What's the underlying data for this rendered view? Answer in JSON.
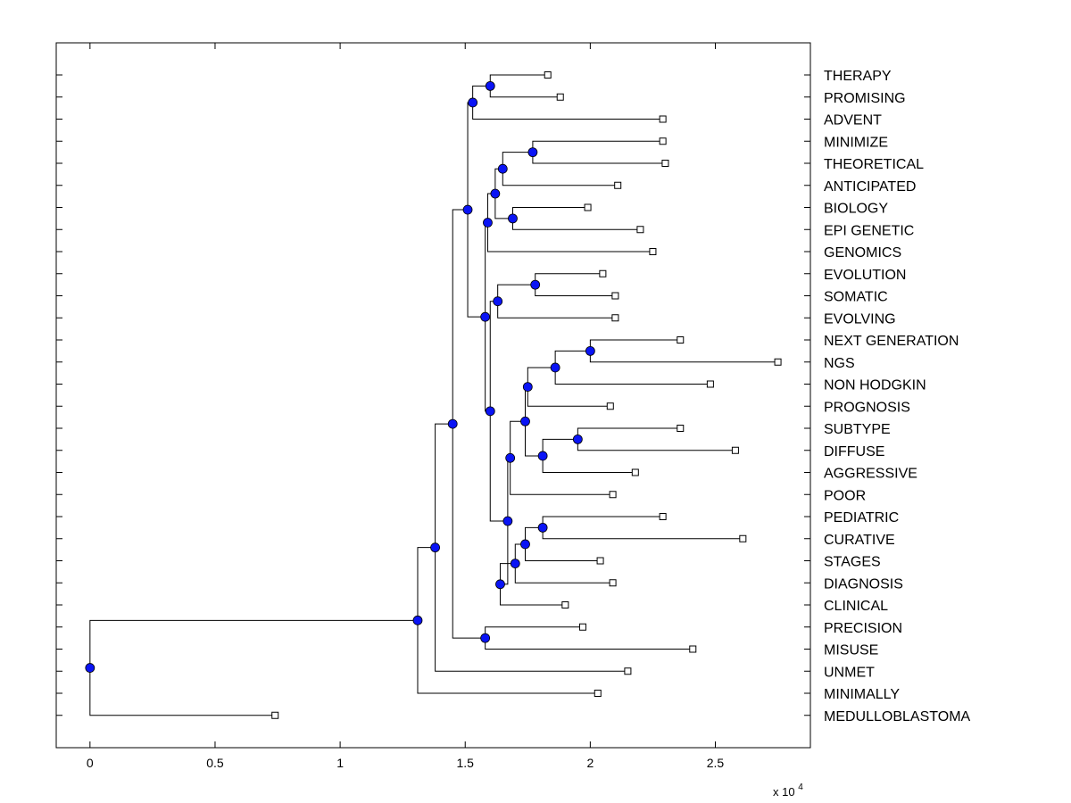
{
  "chart_data": {
    "type": "dendrogram",
    "orientation": "horizontal",
    "title": "",
    "xlabel": "",
    "ylabel": "",
    "x_multiplier_label": "x 10",
    "x_multiplier_exponent": "4",
    "xlim": [
      -0.135,
      2.88
    ],
    "x_ticks": [
      0,
      0.5,
      1,
      1.5,
      2,
      2.5
    ],
    "x_tick_labels": [
      "0",
      "0.5",
      "1",
      "1.5",
      "2",
      "2.5"
    ],
    "grid": false,
    "colors": {
      "node": "#0a14f5",
      "node_edge": "#000000",
      "line": "#000000",
      "leaf_marker": "#ffffff"
    },
    "leaves": [
      {
        "name": "THERAPY",
        "x": 1.83
      },
      {
        "name": "PROMISING",
        "x": 1.88
      },
      {
        "name": "ADVENT",
        "x": 2.29
      },
      {
        "name": "MINIMIZE",
        "x": 2.29
      },
      {
        "name": "THEORETICAL",
        "x": 2.3
      },
      {
        "name": "ANTICIPATED",
        "x": 2.11
      },
      {
        "name": "BIOLOGY",
        "x": 1.99
      },
      {
        "name": "EPI GENETIC",
        "x": 2.2
      },
      {
        "name": "GENOMICS",
        "x": 2.25
      },
      {
        "name": "EVOLUTION",
        "x": 2.05
      },
      {
        "name": "SOMATIC",
        "x": 2.1
      },
      {
        "name": "EVOLVING",
        "x": 2.1
      },
      {
        "name": "NEXT GENERATION",
        "x": 2.36
      },
      {
        "name": "NGS",
        "x": 2.75
      },
      {
        "name": "NON HODGKIN",
        "x": 2.48
      },
      {
        "name": "PROGNOSIS",
        "x": 2.08
      },
      {
        "name": "SUBTYPE",
        "x": 2.36
      },
      {
        "name": "DIFFUSE",
        "x": 2.58
      },
      {
        "name": "AGGRESSIVE",
        "x": 2.18
      },
      {
        "name": "POOR",
        "x": 2.09
      },
      {
        "name": "PEDIATRIC",
        "x": 2.29
      },
      {
        "name": "CURATIVE",
        "x": 2.61
      },
      {
        "name": "STAGES",
        "x": 2.04
      },
      {
        "name": "DIAGNOSIS",
        "x": 2.09
      },
      {
        "name": "CLINICAL",
        "x": 1.9
      },
      {
        "name": "PRECISION",
        "x": 1.97
      },
      {
        "name": "MISUSE",
        "x": 2.41
      },
      {
        "name": "UNMET",
        "x": 2.15
      },
      {
        "name": "MINIMALLY",
        "x": 2.03
      },
      {
        "name": "MEDULLOBLASTOMA",
        "x": 0.74
      }
    ],
    "merges": [
      {
        "id": "n_therapy_promising",
        "x": 1.6,
        "children": [
          "THERAPY",
          "PROMISING"
        ]
      },
      {
        "id": "n_advent",
        "x": 1.53,
        "children": [
          "n_therapy_promising",
          "ADVENT"
        ]
      },
      {
        "id": "n_minimize_theoretical",
        "x": 1.77,
        "children": [
          "MINIMIZE",
          "THEORETICAL"
        ]
      },
      {
        "id": "n_anticipated",
        "x": 1.65,
        "children": [
          "n_minimize_theoretical",
          "ANTICIPATED"
        ]
      },
      {
        "id": "n_biology_epigenetic",
        "x": 1.69,
        "children": [
          "BIOLOGY",
          "EPI GENETIC"
        ]
      },
      {
        "id": "n_bio_group",
        "x": 1.62,
        "children": [
          "n_anticipated",
          "n_biology_epigenetic"
        ]
      },
      {
        "id": "n_genomics",
        "x": 1.59,
        "children": [
          "n_bio_group",
          "GENOMICS"
        ]
      },
      {
        "id": "n_evolution_somatic",
        "x": 1.78,
        "children": [
          "EVOLUTION",
          "SOMATIC"
        ]
      },
      {
        "id": "n_evolving",
        "x": 1.63,
        "children": [
          "n_evolution_somatic",
          "EVOLVING"
        ]
      },
      {
        "id": "n_nextgen_ngs",
        "x": 2.0,
        "children": [
          "NEXT GENERATION",
          "NGS"
        ]
      },
      {
        "id": "n_nonhodgkin",
        "x": 1.86,
        "children": [
          "n_nextgen_ngs",
          "NON HODGKIN"
        ]
      },
      {
        "id": "n_prognosis",
        "x": 1.75,
        "children": [
          "n_nonhodgkin",
          "PROGNOSIS"
        ]
      },
      {
        "id": "n_subtype_diffuse",
        "x": 1.95,
        "children": [
          "SUBTYPE",
          "DIFFUSE"
        ]
      },
      {
        "id": "n_aggressive",
        "x": 1.81,
        "children": [
          "n_subtype_diffuse",
          "AGGRESSIVE"
        ]
      },
      {
        "id": "n_lymphoma_group",
        "x": 1.74,
        "children": [
          "n_prognosis",
          "n_aggressive"
        ]
      },
      {
        "id": "n_poor",
        "x": 1.68,
        "children": [
          "n_lymphoma_group",
          "POOR"
        ]
      },
      {
        "id": "n_pediatric_curative",
        "x": 1.81,
        "children": [
          "PEDIATRIC",
          "CURATIVE"
        ]
      },
      {
        "id": "n_stages",
        "x": 1.74,
        "children": [
          "n_pediatric_curative",
          "STAGES"
        ]
      },
      {
        "id": "n_diagnosis",
        "x": 1.7,
        "children": [
          "n_stages",
          "DIAGNOSIS"
        ]
      },
      {
        "id": "n_clinical",
        "x": 1.64,
        "children": [
          "n_diagnosis",
          "CLINICAL"
        ]
      },
      {
        "id": "n_clinical_group",
        "x": 1.67,
        "children": [
          "n_poor",
          "n_clinical"
        ]
      },
      {
        "id": "n_evolving_clinical",
        "x": 1.6,
        "children": [
          "n_evolving",
          "n_clinical_group"
        ]
      },
      {
        "id": "n_genomics_clinical",
        "x": 1.58,
        "children": [
          "n_genomics",
          "n_evolving_clinical"
        ]
      },
      {
        "id": "n_upper",
        "x": 1.51,
        "children": [
          "n_advent",
          "n_genomics_clinical"
        ]
      },
      {
        "id": "n_precision_misuse",
        "x": 1.58,
        "children": [
          "PRECISION",
          "MISUSE"
        ]
      },
      {
        "id": "n_upper_precision",
        "x": 1.45,
        "children": [
          "n_upper",
          "n_precision_misuse"
        ]
      },
      {
        "id": "n_unmet",
        "x": 1.38,
        "children": [
          "n_upper_precision",
          "UNMET"
        ]
      },
      {
        "id": "n_minimally",
        "x": 1.31,
        "children": [
          "n_unmet",
          "MINIMALLY"
        ]
      },
      {
        "id": "n_root",
        "x": 0.0,
        "children": [
          "n_minimally",
          "MEDULLOBLASTOMA"
        ]
      }
    ]
  }
}
